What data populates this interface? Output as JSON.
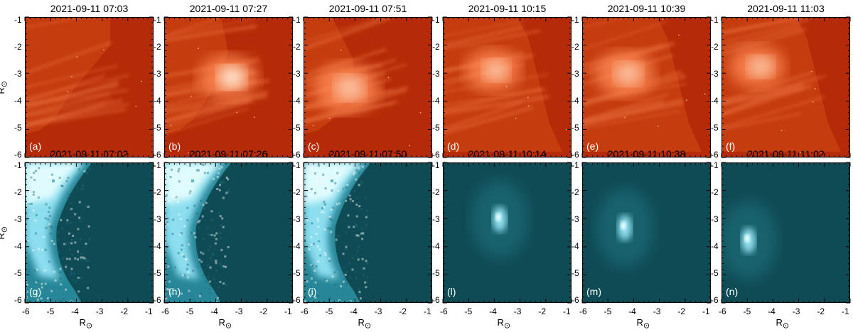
{
  "figure": {
    "rows": [
      {
        "style": "red",
        "panels": [
          {
            "title": "2021-09-11 07:03",
            "letter": "(a)"
          },
          {
            "title": "2021-09-11 07:27",
            "letter": "(b)"
          },
          {
            "title": "2021-09-11 07:51",
            "letter": "(c)"
          },
          {
            "title": "2021-09-11 10:15",
            "letter": "(d)"
          },
          {
            "title": "2021-09-11 10:39",
            "letter": "(e)"
          },
          {
            "title": "2021-09-11 11:03",
            "letter": "(f)"
          }
        ]
      },
      {
        "style": "cyan",
        "panels": [
          {
            "title": "2021-09-11 07:02",
            "letter": "(g)"
          },
          {
            "title": "2021-09-11 07:26",
            "letter": "(h)"
          },
          {
            "title": "2021-09-11 07:50",
            "letter": "(i)"
          },
          {
            "title": "2021-09-11 10:14",
            "letter": "(l)"
          },
          {
            "title": "2021-09-11 10:38",
            "letter": "(m)"
          },
          {
            "title": "2021-09-11 11:02",
            "letter": "(n)"
          }
        ]
      }
    ],
    "y_ticks": [
      "-1",
      "-2",
      "-3",
      "-4",
      "-5",
      "-6"
    ],
    "x_ticks": [
      "-6",
      "-5",
      "-4",
      "-3",
      "-2",
      "-1"
    ],
    "axis_label_main": "R",
    "axis_label_sub": "⊙",
    "colors": {
      "red_bg": "#b52b07",
      "red_bright": "#ff8a55",
      "red_peak": "#fff0dc",
      "cyan_bg": "#0f4b54",
      "cyan_mid": "#2a8ea0",
      "cyan_bright": "#9feeff",
      "cyan_peak": "#e8ffff"
    }
  }
}
